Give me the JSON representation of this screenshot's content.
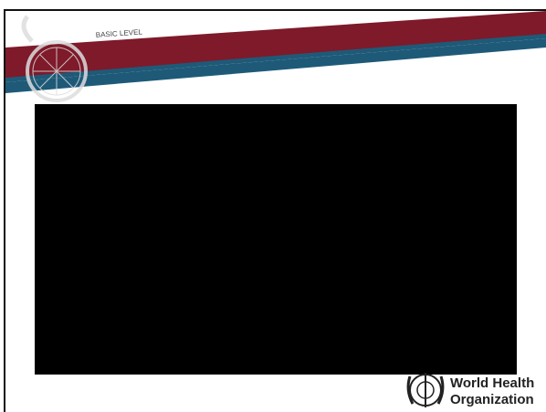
{
  "header": {
    "level": "BASIC LEVEL"
  },
  "logo": {
    "line1": "World Health",
    "line2": "Organization"
  }
}
